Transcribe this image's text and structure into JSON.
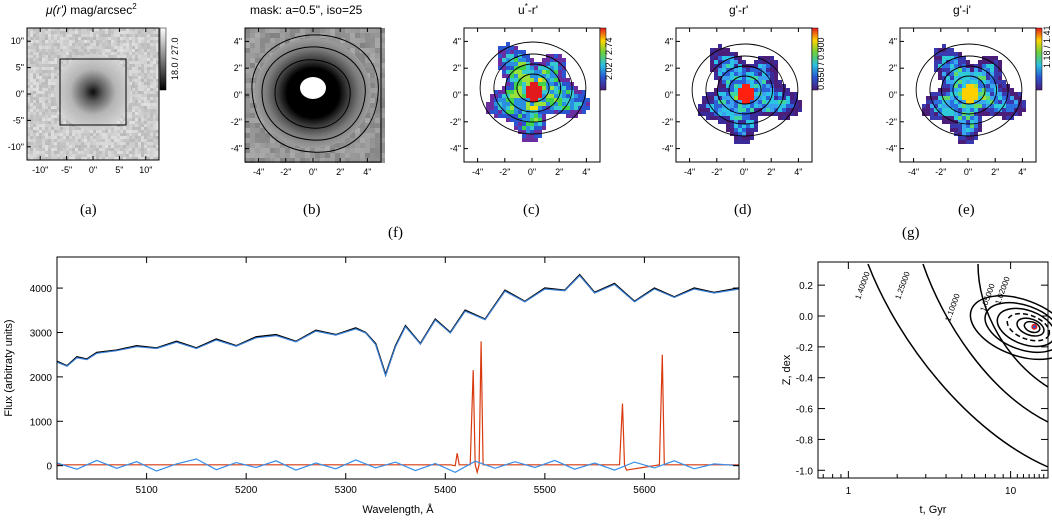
{
  "panels": {
    "a": {
      "title_main": "μ(r')",
      "title_unit": " mag/arcsec",
      "title_sup": "2",
      "xticks": [
        "-10\"",
        "-5\"",
        "0\"",
        "5\"",
        "10\""
      ],
      "yticks": [
        "10\"",
        "5\"",
        "0\"",
        "-5\"",
        "-10\""
      ],
      "colorbar_label": "18.0 / 27.0",
      "caption": "(a)"
    },
    "b": {
      "title": "mask: a=0.5\", iso=25",
      "xticks": [
        "-4\"",
        "-2\"",
        "0\"",
        "2\"",
        "4\""
      ],
      "yticks": [
        "4\"",
        "2\"",
        "0\"",
        "-2\"",
        "-4\""
      ],
      "caption": "(b)"
    },
    "c": {
      "title_main": "u",
      "title_sup": "*",
      "title_rest": "-r'",
      "colorbar_label": "2.02 / 2.74",
      "xticks": [
        "-4\"",
        "-2\"",
        "0\"",
        "2\"",
        "4\""
      ],
      "yticks": [
        "4\"",
        "2\"",
        "0\"",
        "-2\"",
        "-4\""
      ],
      "caption": "(c)"
    },
    "d": {
      "title": "g'-r'",
      "colorbar_label": "0.650 / 0.900",
      "xticks": [
        "-4\"",
        "-2\"",
        "0\"",
        "2\"",
        "4\""
      ],
      "yticks": [
        "4\"",
        "2\"",
        "0\"",
        "-2\"",
        "-4\""
      ],
      "caption": "(d)"
    },
    "e": {
      "title": "g'-i'",
      "colorbar_label": "1.18 / 1.41",
      "xticks": [
        "-4\"",
        "-2\"",
        "0\"",
        "2\"",
        "4\""
      ],
      "yticks": [
        "4\"",
        "2\"",
        "0\"",
        "-2\"",
        "-4\""
      ],
      "caption": "(e)"
    }
  },
  "captions": {
    "f": "(f)",
    "g": "(g)"
  },
  "chart_data": [
    {
      "type": "line",
      "xlabel": "Wavelength, Å",
      "ylabel": "Flux (arbitraty units)",
      "xlim": [
        5010,
        5695
      ],
      "ylim": [
        -300,
        4700
      ],
      "xticks": [
        5100,
        5200,
        5300,
        5400,
        5500,
        5600
      ],
      "yticks": [
        0,
        1000,
        2000,
        3000,
        4000
      ],
      "grid": false,
      "series": [
        {
          "color": "#000000",
          "x": [
            5010,
            5020,
            5030,
            5040,
            5050,
            5070,
            5090,
            5110,
            5130,
            5150,
            5170,
            5190,
            5210,
            5230,
            5250,
            5270,
            5290,
            5310,
            5320,
            5330,
            5340,
            5350,
            5360,
            5375,
            5390,
            5405,
            5420,
            5440,
            5460,
            5480,
            5500,
            5520,
            5535,
            5550,
            5570,
            5590,
            5610,
            5630,
            5650,
            5670,
            5695
          ],
          "values": [
            2350,
            2250,
            2450,
            2400,
            2550,
            2600,
            2700,
            2650,
            2800,
            2650,
            2850,
            2700,
            2900,
            2950,
            2800,
            3050,
            2950,
            3100,
            3000,
            2750,
            2050,
            2700,
            3150,
            2750,
            3300,
            3000,
            3500,
            3300,
            3950,
            3700,
            4000,
            3950,
            4300,
            3900,
            4100,
            3700,
            4000,
            3800,
            4000,
            3900,
            4000
          ]
        },
        {
          "color": "#3a7fd6",
          "x": [
            5010,
            5020,
            5030,
            5040,
            5050,
            5070,
            5090,
            5110,
            5130,
            5150,
            5170,
            5190,
            5210,
            5230,
            5250,
            5270,
            5290,
            5310,
            5320,
            5330,
            5340,
            5350,
            5360,
            5375,
            5390,
            5405,
            5420,
            5440,
            5460,
            5480,
            5500,
            5520,
            5535,
            5550,
            5570,
            5590,
            5610,
            5630,
            5650,
            5670,
            5695
          ],
          "values": [
            2330,
            2240,
            2430,
            2390,
            2530,
            2590,
            2680,
            2640,
            2780,
            2640,
            2830,
            2690,
            2880,
            2930,
            2790,
            3030,
            2940,
            3080,
            2990,
            2730,
            2030,
            2680,
            3130,
            2740,
            3280,
            2990,
            3480,
            3290,
            3930,
            3690,
            3980,
            3940,
            4280,
            3890,
            4080,
            3690,
            3980,
            3790,
            3980,
            3890,
            3980
          ]
        },
        {
          "color": "#d93a10",
          "x": [
            5010,
            5405,
            5410,
            5412,
            5414,
            5425,
            5428,
            5430,
            5432,
            5434,
            5436,
            5438,
            5440,
            5575,
            5578,
            5580,
            5582,
            5615,
            5618,
            5620,
            5622,
            5695
          ],
          "values": [
            20,
            20,
            0,
            280,
            20,
            20,
            2150,
            20,
            -150,
            20,
            2800,
            20,
            20,
            20,
            1400,
            20,
            -100,
            20,
            2500,
            20,
            20,
            20
          ]
        },
        {
          "color": "#3a8ee6",
          "x": [
            5010,
            5030,
            5050,
            5070,
            5090,
            5110,
            5130,
            5150,
            5170,
            5190,
            5210,
            5230,
            5250,
            5270,
            5290,
            5310,
            5330,
            5350,
            5370,
            5390,
            5410,
            5430,
            5450,
            5470,
            5490,
            5510,
            5530,
            5550,
            5570,
            5590,
            5610,
            5630,
            5650,
            5670,
            5695
          ],
          "values": [
            60,
            -80,
            120,
            -60,
            90,
            -120,
            40,
            150,
            -90,
            70,
            -40,
            110,
            -100,
            60,
            -70,
            130,
            -50,
            80,
            -110,
            50,
            -150,
            100,
            -60,
            90,
            -40,
            120,
            -80,
            60,
            -100,
            80,
            -50,
            110,
            -70,
            40,
            0
          ]
        }
      ]
    },
    {
      "type": "contour",
      "xlabel": "t, Gyr",
      "ylabel": "Z, dex",
      "xscale": "log",
      "xlim": [
        0.65,
        17
      ],
      "ylim": [
        -1.05,
        0.35
      ],
      "xticks": [
        1,
        10
      ],
      "yticks": [
        0.2,
        0.0,
        -0.2,
        -0.4,
        -0.6,
        -0.8,
        -1.0
      ],
      "contour_labels": [
        "1.40000",
        "1.25000",
        "1.10000",
        "1.05000",
        "1.02000"
      ],
      "best_fit": {
        "t": 14,
        "Z": -0.07
      }
    }
  ]
}
